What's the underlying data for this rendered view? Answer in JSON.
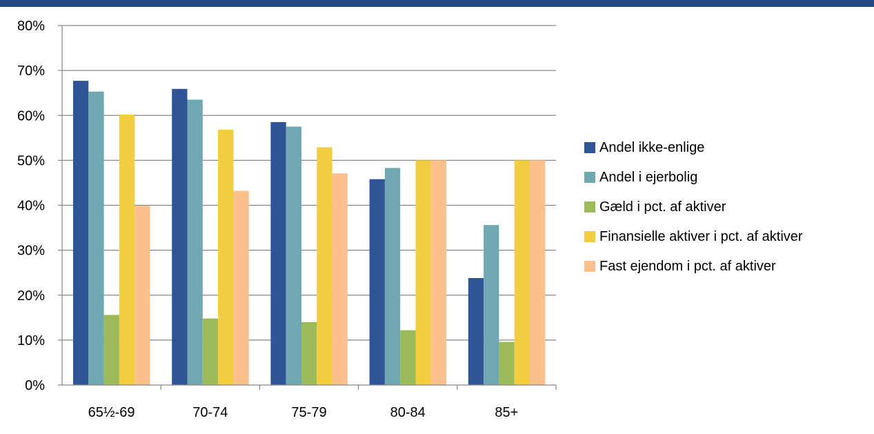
{
  "chart_data": {
    "type": "bar",
    "categories": [
      "65½-69",
      "70-74",
      "75-79",
      "80-84",
      "85+"
    ],
    "series": [
      {
        "name": "Andel ikke-enlige",
        "color": "#2f5597",
        "values": [
          67.7,
          65.9,
          58.5,
          45.8,
          23.8
        ]
      },
      {
        "name": "Andel i ejerbolig",
        "color": "#6fa8b2",
        "values": [
          65.3,
          63.5,
          57.5,
          48.3,
          35.6
        ]
      },
      {
        "name": "Gæld i pct. af aktiver",
        "color": "#9bbb59",
        "values": [
          15.6,
          14.8,
          14.0,
          12.2,
          9.6
        ]
      },
      {
        "name": "Finansielle aktiver i pct. af aktiver",
        "color": "#f2cd3f",
        "values": [
          60.2,
          56.8,
          52.9,
          50.0,
          50.0
        ]
      },
      {
        "name": "Fast ejendom i pct. af aktiver",
        "color": "#fbc08d",
        "values": [
          39.9,
          43.2,
          47.1,
          50.0,
          50.0
        ]
      }
    ],
    "ylim": [
      0,
      80
    ],
    "yticks": [
      "0%",
      "10%",
      "20%",
      "30%",
      "40%",
      "50%",
      "60%",
      "70%",
      "80%"
    ],
    "grid": true,
    "legend_position": "right",
    "title": "",
    "xlabel": "",
    "ylabel": ""
  },
  "colors": {
    "top_band": "#1f497d",
    "grid": "#868686",
    "axis": "#868686"
  }
}
